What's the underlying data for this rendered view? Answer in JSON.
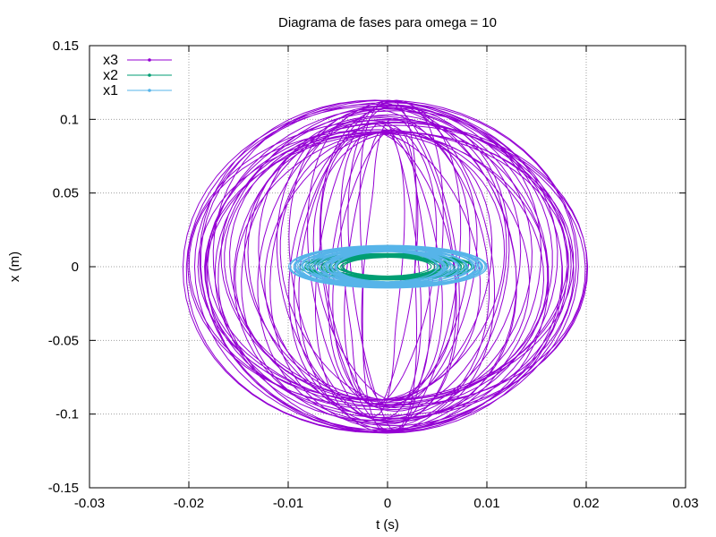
{
  "chart_data": {
    "type": "line",
    "title": "Diagrama de fases para omega = 10",
    "xlabel": "t (s)",
    "ylabel": "x (m)",
    "xlim": [
      -0.03,
      0.03
    ],
    "ylim": [
      -0.15,
      0.15
    ],
    "x_ticks": [
      "-0.03",
      "-0.02",
      "-0.01",
      "0",
      "0.01",
      "0.02",
      "0.03"
    ],
    "y_ticks": [
      "0.15",
      "0.1",
      "0.05",
      "0",
      "-0.05",
      "-0.1",
      "-0.15"
    ],
    "grid": true,
    "legend_position": "top-left",
    "series": [
      {
        "name": "x3",
        "color": "#9400d3",
        "marker": "dot",
        "orbit": {
          "x_center": -0.0003,
          "x_amplitude": 0.0195,
          "y_amplitude": 0.113,
          "x_amplitude_min": 0.0025,
          "loops": 46
        }
      },
      {
        "name": "x2",
        "color": "#009e73",
        "marker": "dot",
        "orbit": {
          "x_center": 0.0,
          "x_amplitude": 0.0085,
          "y_amplitude": 0.009,
          "loops": 22
        }
      },
      {
        "name": "x1",
        "color": "#56b4e9",
        "marker": "dot",
        "orbit": {
          "x_center": 0.0,
          "x_amplitude": 0.0097,
          "y_amplitude": 0.0145,
          "loops": 40
        }
      }
    ]
  }
}
